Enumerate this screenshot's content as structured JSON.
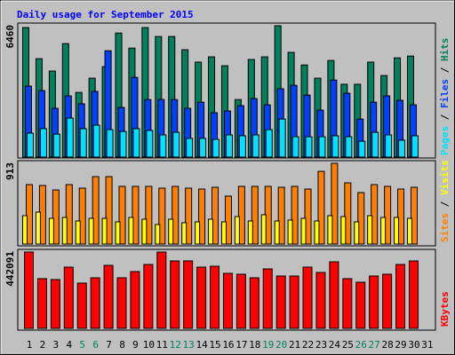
{
  "chart_data": [
    {
      "type": "bar",
      "title": "Daily usage for September 2015",
      "legend_separator": " / ",
      "ylim": [
        0,
        6460
      ],
      "yticks": [
        6460
      ],
      "series": [
        {
          "name": "Hits",
          "color": "#00805c",
          "values": [
            6370,
            4840,
            4230,
            5580,
            3180,
            3880,
            4450,
            6100,
            5360,
            6370,
            5930,
            5930,
            5280,
            4670,
            4930,
            4490,
            2830,
            4800,
            4930,
            6460,
            5150,
            4530,
            3880,
            4750,
            3580,
            3580,
            4670,
            4010,
            4880,
            4970,
            null
          ]
        },
        {
          "name": "Files",
          "color": "#0040ff",
          "values": [
            3490,
            3270,
            2400,
            3010,
            2620,
            3230,
            5230,
            2440,
            3920,
            2830,
            2830,
            2830,
            2400,
            2700,
            2180,
            2270,
            2530,
            2880,
            2570,
            3360,
            3530,
            3050,
            2310,
            3790,
            3140,
            1870,
            2700,
            3010,
            2790,
            2570,
            null
          ]
        },
        {
          "name": "Pages",
          "color": "#00e0ff",
          "values": [
            1180,
            1400,
            1130,
            1920,
            1400,
            1570,
            1350,
            1260,
            1400,
            1310,
            1090,
            1220,
            920,
            920,
            870,
            1090,
            1050,
            1090,
            1350,
            1870,
            1000,
            1000,
            1000,
            1050,
            1000,
            780,
            1220,
            1090,
            830,
            1050,
            null
          ]
        }
      ]
    },
    {
      "type": "bar",
      "ylim": [
        0,
        913
      ],
      "yticks": [
        913
      ],
      "series": [
        {
          "name": "Visits",
          "color": "#ffff00",
          "values": [
            321,
            361,
            291,
            301,
            261,
            291,
            291,
            251,
            301,
            281,
            221,
            281,
            241,
            251,
            281,
            251,
            311,
            261,
            331,
            261,
            271,
            291,
            261,
            321,
            311,
            251,
            321,
            301,
            301,
            291,
            null
          ]
        },
        {
          "name": "Sites",
          "color": "#ff8000",
          "values": [
            672,
            662,
            612,
            672,
            632,
            762,
            762,
            652,
            652,
            652,
            632,
            652,
            632,
            622,
            642,
            542,
            652,
            652,
            652,
            642,
            652,
            622,
            822,
            913,
            692,
            582,
            672,
            652,
            622,
            642,
            null
          ]
        }
      ]
    },
    {
      "type": "bar",
      "ylim": [
        0,
        442091
      ],
      "yticks": [
        442091
      ],
      "categories": [
        "1",
        "2",
        "3",
        "4",
        "5",
        "6",
        "7",
        "8",
        "9",
        "10",
        "11",
        "12",
        "13",
        "14",
        "15",
        "16",
        "17",
        "18",
        "19",
        "20",
        "21",
        "22",
        "23",
        "24",
        "25",
        "26",
        "27",
        "28",
        "29",
        "30",
        "31"
      ],
      "category_label_colors": [
        "#000000",
        "#000000",
        "#000000",
        "#000000",
        "#00805c",
        "#00805c",
        "#000000",
        "#000000",
        "#000000",
        "#000000",
        "#000000",
        "#00805c",
        "#00805c",
        "#000000",
        "#000000",
        "#000000",
        "#000000",
        "#000000",
        "#00805c",
        "#00805c",
        "#000000",
        "#000000",
        "#000000",
        "#000000",
        "#000000",
        "#00805c",
        "#00805c",
        "#000000",
        "#000000",
        "#000000",
        "#000000"
      ],
      "series": [
        {
          "name": "KBytes",
          "color": "#ff0000",
          "values": [
            442091,
            287900,
            282800,
            354700,
            262200,
            293000,
            365000,
            293000,
            329000,
            370100,
            442091,
            390700,
            390700,
            354700,
            359900,
            318700,
            313600,
            293000,
            344400,
            303300,
            303300,
            354700,
            323900,
            385600,
            287900,
            267300,
            303300,
            313600,
            370100,
            390700,
            null
          ]
        }
      ]
    }
  ]
}
